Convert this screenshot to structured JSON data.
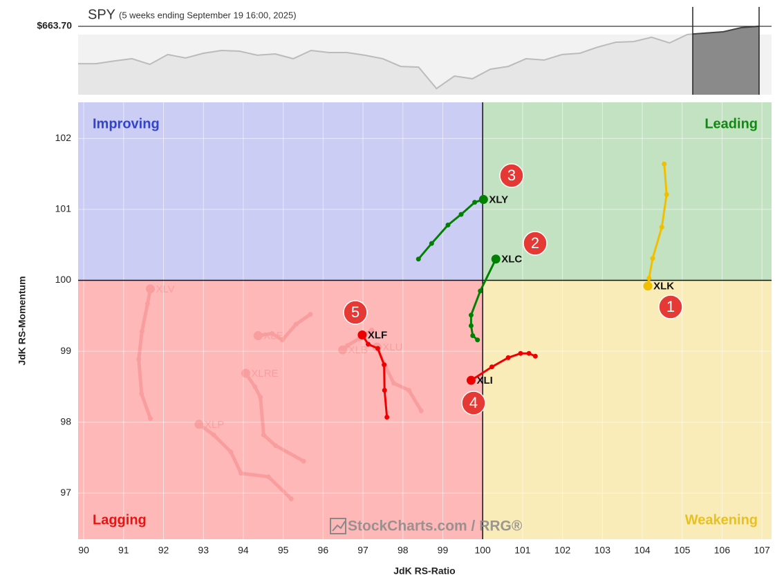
{
  "chart_data": [
    {
      "type": "line",
      "title": "SPY",
      "subtitle": "(5 weeks ending September 19 16:00, 2025)",
      "values": [
        647.3,
        647.3,
        648.5,
        649.5,
        647.0,
        651.3,
        649.8,
        651.9,
        653.1,
        652.8,
        651.0,
        651.6,
        649.5,
        653.1,
        652.2,
        652.2,
        651.0,
        649.5,
        646.1,
        645.8,
        636.4,
        641.9,
        640.7,
        644.9,
        646.1,
        649.5,
        648.9,
        651.3,
        651.9,
        654.6,
        656.7,
        657.0,
        658.9,
        656.4,
        660.1,
        660.7,
        661.3,
        663.1,
        663.7
      ],
      "color": "#bbbbbb",
      "ylim": [
        633.7,
        672.2
      ],
      "yticks": [
        {
          "value": 663.7,
          "label": "$663.70"
        }
      ]
    },
    {
      "type": "scatter",
      "xlabel": "JdK RS-Ratio",
      "ylabel": "JdK RS-Momentum",
      "xlim": [
        89.86,
        107.24
      ],
      "ylim": [
        96.35,
        102.51
      ],
      "xticks": [
        90,
        91,
        92,
        93,
        94,
        95,
        96,
        97,
        98,
        99,
        100,
        101,
        102,
        103,
        104,
        105,
        106,
        107
      ],
      "yticks": [
        97,
        98,
        99,
        100,
        101,
        102
      ],
      "grid": true,
      "center": [
        100,
        100
      ],
      "quadrants": [
        {
          "name": "Improving",
          "color": "#cbcdf5",
          "label_color": "#3344cc"
        },
        {
          "name": "Leading",
          "color": "#c2e2c2",
          "label_color": "#118811"
        },
        {
          "name": "Lagging",
          "color": "#ffb8b8",
          "label_color": "#ee1111"
        },
        {
          "name": "Weakening",
          "color": "#f9ecb8",
          "label_color": "#e8c020"
        }
      ],
      "watermark": "StockCharts.com / RRG®",
      "series": [
        {
          "name": "XLV",
          "color": "#f07070",
          "opacity": 0.35,
          "x": [
            91.67,
            91.45,
            91.38,
            91.46,
            91.6,
            91.67
          ],
          "y": [
            98.05,
            98.4,
            98.89,
            99.28,
            99.67,
            99.88
          ]
        },
        {
          "name": "XLE",
          "color": "#f07070",
          "opacity": 0.35,
          "x": [
            95.68,
            95.32,
            94.98,
            94.72,
            94.37
          ],
          "y": [
            99.52,
            99.38,
            99.16,
            99.25,
            99.22
          ]
        },
        {
          "name": "XLB",
          "color": "#f07070",
          "opacity": 0.35,
          "x": [
            97.22,
            96.91,
            96.61,
            96.49
          ],
          "y": [
            99.3,
            99.18,
            99.08,
            99.02
          ]
        },
        {
          "name": "XLU",
          "color": "#f07070",
          "opacity": 0.35,
          "x": [
            98.46,
            98.15,
            97.77,
            97.56,
            97.35
          ],
          "y": [
            98.16,
            98.45,
            98.55,
            98.79,
            99.06
          ]
        },
        {
          "name": "XLRE",
          "color": "#f07070",
          "opacity": 0.35,
          "x": [
            95.51,
            94.81,
            94.51,
            94.43,
            94.29,
            94.06
          ],
          "y": [
            97.45,
            97.67,
            97.82,
            98.35,
            98.5,
            98.69
          ]
        },
        {
          "name": "XLP",
          "color": "#f07070",
          "opacity": 0.35,
          "x": [
            95.2,
            94.63,
            93.94,
            93.69,
            93.26,
            92.89
          ],
          "y": [
            96.92,
            97.23,
            97.28,
            97.58,
            97.82,
            97.97
          ]
        },
        {
          "name": "XLK",
          "color": "#f0c000",
          "opacity": 1,
          "x": [
            104.55,
            104.61,
            104.49,
            104.26,
            104.17,
            104.14
          ],
          "y": [
            101.64,
            101.21,
            100.75,
            100.31,
            100.03,
            99.92
          ]
        },
        {
          "name": "XLC",
          "color": "#008000",
          "opacity": 1,
          "x": [
            99.87,
            99.75,
            99.71,
            99.71,
            99.94,
            100.33
          ],
          "y": [
            99.16,
            99.22,
            99.36,
            99.51,
            99.85,
            100.3
          ]
        },
        {
          "name": "XLY",
          "color": "#008000",
          "opacity": 1,
          "x": [
            98.39,
            98.72,
            99.13,
            99.46,
            99.8,
            100.02
          ],
          "y": [
            100.3,
            100.52,
            100.78,
            100.93,
            101.1,
            101.14
          ]
        },
        {
          "name": "XLI",
          "color": "#ee0000",
          "opacity": 1,
          "x": [
            101.32,
            101.16,
            100.95,
            100.64,
            100.23,
            99.71
          ],
          "y": [
            98.93,
            98.97,
            98.97,
            98.91,
            98.78,
            98.59
          ]
        },
        {
          "name": "XLF",
          "color": "#ee0000",
          "opacity": 1,
          "x": [
            97.6,
            97.54,
            97.53,
            97.37,
            97.13,
            96.98
          ],
          "y": [
            98.07,
            98.45,
            98.81,
            99.04,
            99.1,
            99.23
          ]
        }
      ],
      "annotations": [
        "1",
        "2",
        "3",
        "4",
        "5"
      ]
    }
  ]
}
